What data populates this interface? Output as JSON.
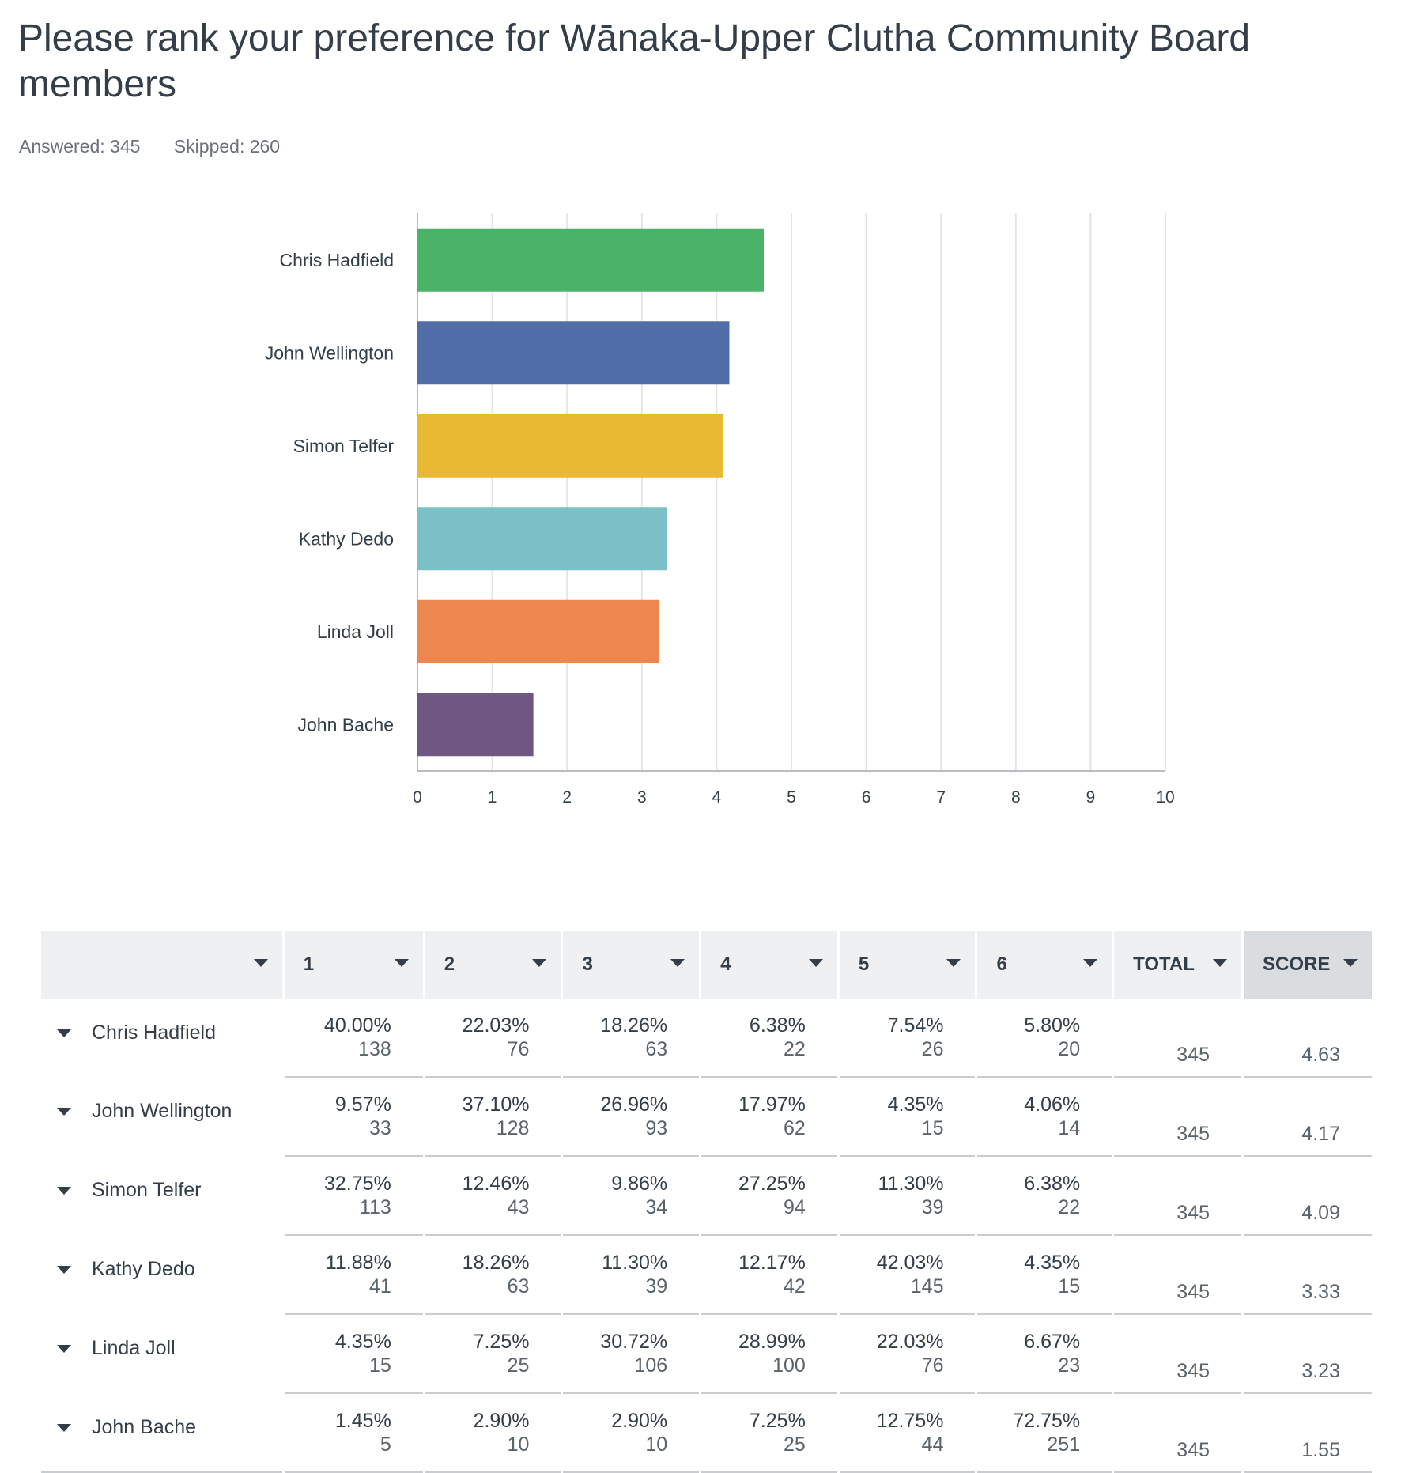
{
  "header": {
    "title": "Please rank your preference for Wānaka-Upper Clutha Community Board members",
    "answered": "Answered: 345",
    "skipped": "Skipped: 260"
  },
  "chart_data": {
    "type": "bar",
    "orientation": "horizontal",
    "categories": [
      "Chris Hadfield",
      "John Wellington",
      "Simon Telfer",
      "Kathy Dedo",
      "Linda Joll",
      "John Bache"
    ],
    "values": [
      4.63,
      4.17,
      4.09,
      3.33,
      3.23,
      1.55
    ],
    "colors": [
      "#4ab367",
      "#526ea8",
      "#eab934",
      "#7bc0c6",
      "#ec884f",
      "#6f5683"
    ],
    "xlim": [
      0,
      10
    ],
    "ticks": [
      0,
      1,
      2,
      3,
      4,
      5,
      6,
      7,
      8,
      9,
      10
    ],
    "grid": true
  },
  "table": {
    "headers": [
      "",
      "1",
      "2",
      "3",
      "4",
      "5",
      "6",
      "TOTAL",
      "SCORE"
    ],
    "rows": [
      {
        "name": "Chris Hadfield",
        "cells": [
          [
            "40.00%",
            "138"
          ],
          [
            "22.03%",
            "76"
          ],
          [
            "18.26%",
            "63"
          ],
          [
            "6.38%",
            "22"
          ],
          [
            "7.54%",
            "26"
          ],
          [
            "5.80%",
            "20"
          ]
        ],
        "total": "345",
        "score": "4.63"
      },
      {
        "name": "John Wellington",
        "cells": [
          [
            "9.57%",
            "33"
          ],
          [
            "37.10%",
            "128"
          ],
          [
            "26.96%",
            "93"
          ],
          [
            "17.97%",
            "62"
          ],
          [
            "4.35%",
            "15"
          ],
          [
            "4.06%",
            "14"
          ]
        ],
        "total": "345",
        "score": "4.17"
      },
      {
        "name": "Simon Telfer",
        "cells": [
          [
            "32.75%",
            "113"
          ],
          [
            "12.46%",
            "43"
          ],
          [
            "9.86%",
            "34"
          ],
          [
            "27.25%",
            "94"
          ],
          [
            "11.30%",
            "39"
          ],
          [
            "6.38%",
            "22"
          ]
        ],
        "total": "345",
        "score": "4.09"
      },
      {
        "name": "Kathy Dedo",
        "cells": [
          [
            "11.88%",
            "41"
          ],
          [
            "18.26%",
            "63"
          ],
          [
            "11.30%",
            "39"
          ],
          [
            "12.17%",
            "42"
          ],
          [
            "42.03%",
            "145"
          ],
          [
            "4.35%",
            "15"
          ]
        ],
        "total": "345",
        "score": "3.33"
      },
      {
        "name": "Linda Joll",
        "cells": [
          [
            "4.35%",
            "15"
          ],
          [
            "7.25%",
            "25"
          ],
          [
            "30.72%",
            "106"
          ],
          [
            "28.99%",
            "100"
          ],
          [
            "22.03%",
            "76"
          ],
          [
            "6.67%",
            "23"
          ]
        ],
        "total": "345",
        "score": "3.23"
      },
      {
        "name": "John Bache",
        "cells": [
          [
            "1.45%",
            "5"
          ],
          [
            "2.90%",
            "10"
          ],
          [
            "2.90%",
            "10"
          ],
          [
            "7.25%",
            "25"
          ],
          [
            "12.75%",
            "44"
          ],
          [
            "72.75%",
            "251"
          ]
        ],
        "total": "345",
        "score": "1.55"
      }
    ]
  }
}
